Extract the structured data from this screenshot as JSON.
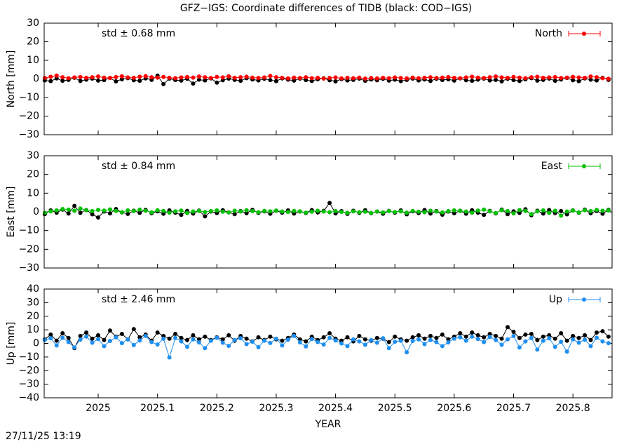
{
  "title": "GFZ−IGS: Coordinate differences of TIDB (black: COD−IGS)",
  "timestamp": "27/11/25 13:19",
  "chart_data": [
    {
      "type": "line",
      "ylabel": "North [mm]",
      "annotation": "std ± 0.68 mm",
      "xlim": [
        2024.909,
        2025.866
      ],
      "xticks": [
        2025,
        2025.1,
        2025.2,
        2025.3,
        2025.4,
        2025.5,
        2025.6,
        2025.7,
        2025.8
      ],
      "ylim": [
        -30,
        30
      ],
      "yticks": [
        {
          "value": -30,
          "label": "−30"
        },
        {
          "value": -20,
          "label": "−20"
        },
        {
          "value": -10,
          "label": "−10"
        },
        0,
        10,
        20,
        30
      ],
      "x": [
        2024.91,
        2024.92,
        2024.93,
        2024.94,
        2024.95,
        2024.96,
        2024.97,
        2024.98,
        2024.99,
        2025.0,
        2025.01,
        2025.02,
        2025.03,
        2025.04,
        2025.05,
        2025.06,
        2025.07,
        2025.08,
        2025.09,
        2025.1,
        2025.11,
        2025.12,
        2025.13,
        2025.14,
        2025.15,
        2025.16,
        2025.17,
        2025.18,
        2025.19,
        2025.2,
        2025.21,
        2025.22,
        2025.23,
        2025.24,
        2025.25,
        2025.26,
        2025.27,
        2025.28,
        2025.29,
        2025.3,
        2025.31,
        2025.32,
        2025.33,
        2025.34,
        2025.35,
        2025.36,
        2025.37,
        2025.38,
        2025.39,
        2025.4,
        2025.41,
        2025.42,
        2025.43,
        2025.44,
        2025.45,
        2025.46,
        2025.47,
        2025.48,
        2025.49,
        2025.5,
        2025.51,
        2025.52,
        2025.53,
        2025.54,
        2025.55,
        2025.56,
        2025.57,
        2025.58,
        2025.59,
        2025.6,
        2025.61,
        2025.62,
        2025.63,
        2025.64,
        2025.65,
        2025.66,
        2025.67,
        2025.68,
        2025.69,
        2025.7,
        2025.71,
        2025.72,
        2025.73,
        2025.74,
        2025.75,
        2025.76,
        2025.77,
        2025.78,
        2025.79,
        2025.8,
        2025.81,
        2025.82,
        2025.83,
        2025.84,
        2025.85,
        2025.86
      ],
      "series": [
        {
          "color": "#000000",
          "values": [
            -0.8,
            -1.2,
            0.3,
            -1.0,
            -0.5,
            0.6,
            -1.1,
            -0.4,
            0.2,
            -0.9,
            -0.6,
            0.5,
            -1.3,
            -0.2,
            0.4,
            -0.7,
            -1.0,
            0.3,
            -0.5,
            1.8,
            -2.8,
            0.2,
            -0.6,
            -0.9,
            0.1,
            -2.5,
            -0.4,
            -0.8,
            0.3,
            -2.0,
            -0.7,
            0.2,
            -0.5,
            -1.0,
            0.4,
            -0.3,
            -0.8,
            0.1,
            -0.6,
            -1.2,
            0.3,
            -0.4,
            -0.9,
            0.2,
            -0.6,
            -1.1,
            -0.2,
            0.4,
            -0.7,
            -1.3,
            -0.1,
            -0.8,
            -0.5,
            0.2,
            -1.0,
            -0.3,
            -0.7,
            0.1,
            -0.9,
            -0.4,
            -1.2,
            -0.5,
            0.2,
            -0.8,
            -0.3,
            -1.1,
            0.1,
            -0.6,
            -0.2,
            -0.9,
            0.3,
            -0.7,
            -1.0,
            -0.4,
            0.2,
            -0.8,
            -0.5,
            -1.3,
            0.1,
            -0.6,
            -1.1,
            -0.2,
            0.4,
            -0.9,
            -0.5,
            0.2,
            -1.0,
            -0.3,
            0.5,
            -0.7,
            -1.2,
            0.3,
            -0.4,
            -0.8,
            0.6,
            -0.5
          ]
        },
        {
          "name": "North",
          "color": "#ff0000",
          "values": [
            0.5,
            1.2,
            1.8,
            0.9,
            0.4,
            0.8,
            1.1,
            0.6,
            0.9,
            1.3,
            0.7,
            0.5,
            1.0,
            1.4,
            0.8,
            0.6,
            1.2,
            1.5,
            0.9,
            0.7,
            1.1,
            0.6,
            0.4,
            0.8,
            1.0,
            0.7,
            1.3,
            0.9,
            0.5,
            1.1,
            0.8,
            1.4,
            0.6,
            0.9,
            1.2,
            0.7,
            0.5,
            0.8,
            1.6,
            0.9,
            0.6,
            0.3,
            0.7,
            0.5,
            0.9,
            0.4,
            0.6,
            0.2,
            0.5,
            0.8,
            0.3,
            0.6,
            0.4,
            0.7,
            0.2,
            0.5,
            0.3,
            0.6,
            0.4,
            0.8,
            0.5,
            0.3,
            0.7,
            0.4,
            0.6,
            0.9,
            0.5,
            0.7,
            1.0,
            0.6,
            0.4,
            0.8,
            1.2,
            0.7,
            0.5,
            0.9,
            1.3,
            0.8,
            0.6,
            1.1,
            0.7,
            0.4,
            0.9,
            1.2,
            0.6,
            0.8,
            1.0,
            0.5,
            0.7,
            1.1,
            0.8,
            0.6,
            1.3,
            0.9,
            0.4,
            0.1
          ]
        }
      ]
    },
    {
      "type": "line",
      "ylabel": "East [mm]",
      "annotation": "std ± 0.84 mm",
      "xlim": [
        2024.909,
        2025.866
      ],
      "xticks": [
        2025,
        2025.1,
        2025.2,
        2025.3,
        2025.4,
        2025.5,
        2025.6,
        2025.7,
        2025.8
      ],
      "ylim": [
        -30,
        30
      ],
      "yticks": [
        {
          "value": -30,
          "label": "−30"
        },
        {
          "value": -20,
          "label": "−20"
        },
        {
          "value": -10,
          "label": "−10"
        },
        0,
        10,
        20,
        30
      ],
      "x": [
        2024.91,
        2024.92,
        2024.93,
        2024.94,
        2024.95,
        2024.96,
        2024.97,
        2024.98,
        2024.99,
        2025.0,
        2025.01,
        2025.02,
        2025.03,
        2025.04,
        2025.05,
        2025.06,
        2025.07,
        2025.08,
        2025.09,
        2025.1,
        2025.11,
        2025.12,
        2025.13,
        2025.14,
        2025.15,
        2025.16,
        2025.17,
        2025.18,
        2025.19,
        2025.2,
        2025.21,
        2025.22,
        2025.23,
        2025.24,
        2025.25,
        2025.26,
        2025.27,
        2025.28,
        2025.29,
        2025.3,
        2025.31,
        2025.32,
        2025.33,
        2025.34,
        2025.35,
        2025.36,
        2025.37,
        2025.38,
        2025.39,
        2025.4,
        2025.41,
        2025.42,
        2025.43,
        2025.44,
        2025.45,
        2025.46,
        2025.47,
        2025.48,
        2025.49,
        2025.5,
        2025.51,
        2025.52,
        2025.53,
        2025.54,
        2025.55,
        2025.56,
        2025.57,
        2025.58,
        2025.59,
        2025.6,
        2025.61,
        2025.62,
        2025.63,
        2025.64,
        2025.65,
        2025.66,
        2025.67,
        2025.68,
        2025.69,
        2025.7,
        2025.71,
        2025.72,
        2025.73,
        2025.74,
        2025.75,
        2025.76,
        2025.77,
        2025.78,
        2025.79,
        2025.8,
        2025.81,
        2025.82,
        2025.83,
        2025.84,
        2025.85,
        2025.86
      ],
      "series": [
        {
          "color": "#000000",
          "values": [
            -1.2,
            0.8,
            -0.4,
            1.2,
            -0.9,
            3.2,
            -0.5,
            1.0,
            -1.3,
            -3.0,
            0.2,
            -0.8,
            1.5,
            -0.3,
            -1.1,
            0.6,
            -0.5,
            1.1,
            -0.7,
            0.3,
            -1.0,
            0.8,
            -0.4,
            -1.6,
            0.5,
            -0.9,
            0.7,
            -2.4,
            0.2,
            -0.6,
            0.9,
            -0.3,
            -1.2,
            0.4,
            -0.7,
            1.1,
            -0.5,
            0.3,
            -1.0,
            0.6,
            -0.4,
            0.8,
            -0.9,
            0.2,
            -0.6,
            1.0,
            -0.3,
            0.5,
            4.8,
            -0.8,
            0.4,
            -1.1,
            0.6,
            -0.5,
            0.9,
            -0.7,
            0.2,
            -1.0,
            0.5,
            -0.4,
            0.8,
            -1.3,
            0.3,
            -0.6,
            1.0,
            -0.9,
            0.4,
            -1.5,
            0.2,
            -0.7,
            0.6,
            -1.0,
            0.9,
            -0.4,
            -1.6,
            0.5,
            -0.8,
            1.2,
            -1.2,
            0.3,
            -0.5,
            1.4,
            -1.8,
            0.6,
            -0.9,
            1.0,
            -0.6,
            0.4,
            -1.3,
            0.8,
            -0.4,
            1.2,
            -0.7,
            0.5,
            -1.0,
            1.1
          ]
        },
        {
          "name": "East",
          "color": "#00c000",
          "values": [
            -0.5,
            0.3,
            0.8,
            1.5,
            1.2,
            0.6,
            1.8,
            0.9,
            0.4,
            1.1,
            0.7,
            1.3,
            0.5,
            -0.2,
            0.8,
            0.4,
            1.2,
            0.6,
            -0.3,
            0.9,
            0.5,
            -0.4,
            0.3,
            0.7,
            -0.6,
            0.2,
            0.5,
            -0.1,
            0.4,
            0.8,
            0.1,
            -0.3,
            0.6,
            0.2,
            0.9,
            0.4,
            -0.2,
            0.5,
            0.3,
            0.7,
            0.2,
            -0.1,
            0.5,
            0.3,
            -0.4,
            0.1,
            0.6,
            0.2,
            -0.2,
            0.4,
            0.0,
            -0.5,
            0.3,
            -0.2,
            0.1,
            -0.6,
            0.2,
            -0.3,
            0.4,
            -0.1,
            0.3,
            -0.4,
            0.5,
            0.1,
            -0.2,
            0.6,
            0.2,
            -0.3,
            0.4,
            0.8,
            0.5,
            0.2,
            -0.4,
            0.7,
            1.2,
            0.3,
            -0.6,
            0.9,
            0.4,
            -0.8,
            1.0,
            0.5,
            -1.2,
            0.3,
            0.8,
            -0.5,
            0.6,
            -2.0,
            0.2,
            0.7,
            -0.3,
            0.9,
            0.4,
            1.1,
            0.6,
            0.8
          ]
        }
      ]
    },
    {
      "type": "line",
      "ylabel": "Up [mm]",
      "annotation": "std ± 2.46 mm",
      "xlabel": "YEAR",
      "xlim": [
        2024.909,
        2025.866
      ],
      "xticks": [
        2025,
        2025.1,
        2025.2,
        2025.3,
        2025.4,
        2025.5,
        2025.6,
        2025.7,
        2025.8
      ],
      "ylim": [
        -40,
        40
      ],
      "yticks": [
        {
          "value": -40,
          "label": "−40"
        },
        {
          "value": -30,
          "label": "−30"
        },
        {
          "value": -20,
          "label": "−20"
        },
        {
          "value": -10,
          "label": "−10"
        },
        0,
        10,
        20,
        30,
        40
      ],
      "x": [
        2024.91,
        2024.92,
        2024.93,
        2024.94,
        2024.95,
        2024.96,
        2024.97,
        2024.98,
        2024.99,
        2025.0,
        2025.01,
        2025.02,
        2025.03,
        2025.04,
        2025.05,
        2025.06,
        2025.07,
        2025.08,
        2025.09,
        2025.1,
        2025.11,
        2025.12,
        2025.13,
        2025.14,
        2025.15,
        2025.16,
        2025.17,
        2025.18,
        2025.19,
        2025.2,
        2025.21,
        2025.22,
        2025.23,
        2025.24,
        2025.25,
        2025.26,
        2025.27,
        2025.28,
        2025.29,
        2025.3,
        2025.31,
        2025.32,
        2025.33,
        2025.34,
        2025.35,
        2025.36,
        2025.37,
        2025.38,
        2025.39,
        2025.4,
        2025.41,
        2025.42,
        2025.43,
        2025.44,
        2025.45,
        2025.46,
        2025.47,
        2025.48,
        2025.49,
        2025.5,
        2025.51,
        2025.52,
        2025.53,
        2025.54,
        2025.55,
        2025.56,
        2025.57,
        2025.58,
        2025.59,
        2025.6,
        2025.61,
        2025.62,
        2025.63,
        2025.64,
        2025.65,
        2025.66,
        2025.67,
        2025.68,
        2025.69,
        2025.7,
        2025.71,
        2025.72,
        2025.73,
        2025.74,
        2025.75,
        2025.76,
        2025.77,
        2025.78,
        2025.79,
        2025.8,
        2025.81,
        2025.82,
        2025.83,
        2025.84,
        2025.85,
        2025.86
      ],
      "series": [
        {
          "color": "#000000",
          "values": [
            3.0,
            6.5,
            2.0,
            7.5,
            4.0,
            -3.5,
            5.5,
            8.0,
            3.5,
            6.0,
            2.5,
            9.5,
            5.0,
            7.0,
            3.0,
            10.5,
            4.5,
            6.5,
            2.0,
            8.0,
            5.5,
            3.5,
            7.0,
            4.0,
            2.5,
            6.0,
            3.0,
            5.0,
            2.5,
            4.5,
            3.0,
            6.0,
            2.0,
            5.5,
            3.5,
            1.5,
            4.5,
            2.5,
            5.0,
            3.0,
            2.0,
            4.0,
            6.5,
            3.0,
            1.5,
            5.0,
            2.5,
            4.5,
            7.5,
            3.5,
            2.0,
            4.5,
            1.5,
            5.5,
            3.0,
            2.0,
            4.0,
            3.5,
            1.0,
            5.0,
            3.0,
            2.0,
            4.5,
            6.0,
            3.5,
            5.5,
            4.0,
            6.5,
            3.0,
            5.0,
            7.5,
            5.0,
            8.0,
            6.0,
            4.5,
            7.0,
            5.5,
            3.5,
            12.0,
            8.5,
            4.0,
            6.5,
            7.0,
            2.5,
            5.0,
            6.0,
            3.5,
            7.5,
            2.0,
            5.5,
            4.0,
            6.0,
            2.5,
            8.0,
            9.0,
            5.0
          ]
        },
        {
          "name": "Up",
          "color": "#1e8ff0",
          "values": [
            2.5,
            3.8,
            -1.5,
            4.2,
            1.0,
            -3.0,
            2.8,
            5.0,
            0.5,
            3.2,
            -2.0,
            1.8,
            4.5,
            0.2,
            3.0,
            -1.2,
            2.2,
            5.5,
            1.0,
            -0.8,
            3.5,
            -10.3,
            4.0,
            1.5,
            -2.5,
            3.0,
            0.8,
            -3.5,
            2.0,
            4.2,
            0.5,
            -1.8,
            2.5,
            3.8,
            -0.5,
            1.2,
            -2.8,
            2.0,
            0.3,
            3.5,
            -1.5,
            2.8,
            5.5,
            0.8,
            -2.2,
            3.2,
            1.0,
            -0.8,
            4.0,
            2.2,
            0.0,
            -2.0,
            3.0,
            1.5,
            -1.0,
            2.5,
            0.5,
            3.8,
            -3.5,
            1.2,
            2.0,
            -6.5,
            1.8,
            3.0,
            -0.5,
            2.5,
            1.0,
            -2.0,
            0.8,
            3.5,
            4.5,
            2.0,
            5.0,
            3.2,
            1.0,
            4.8,
            2.5,
            -1.0,
            3.0,
            5.5,
            -3.0,
            1.5,
            4.0,
            -4.5,
            2.0,
            3.8,
            -2.5,
            1.2,
            -6.0,
            3.0,
            0.5,
            2.8,
            -2.0,
            4.2,
            1.5,
            0.2
          ]
        }
      ]
    }
  ]
}
